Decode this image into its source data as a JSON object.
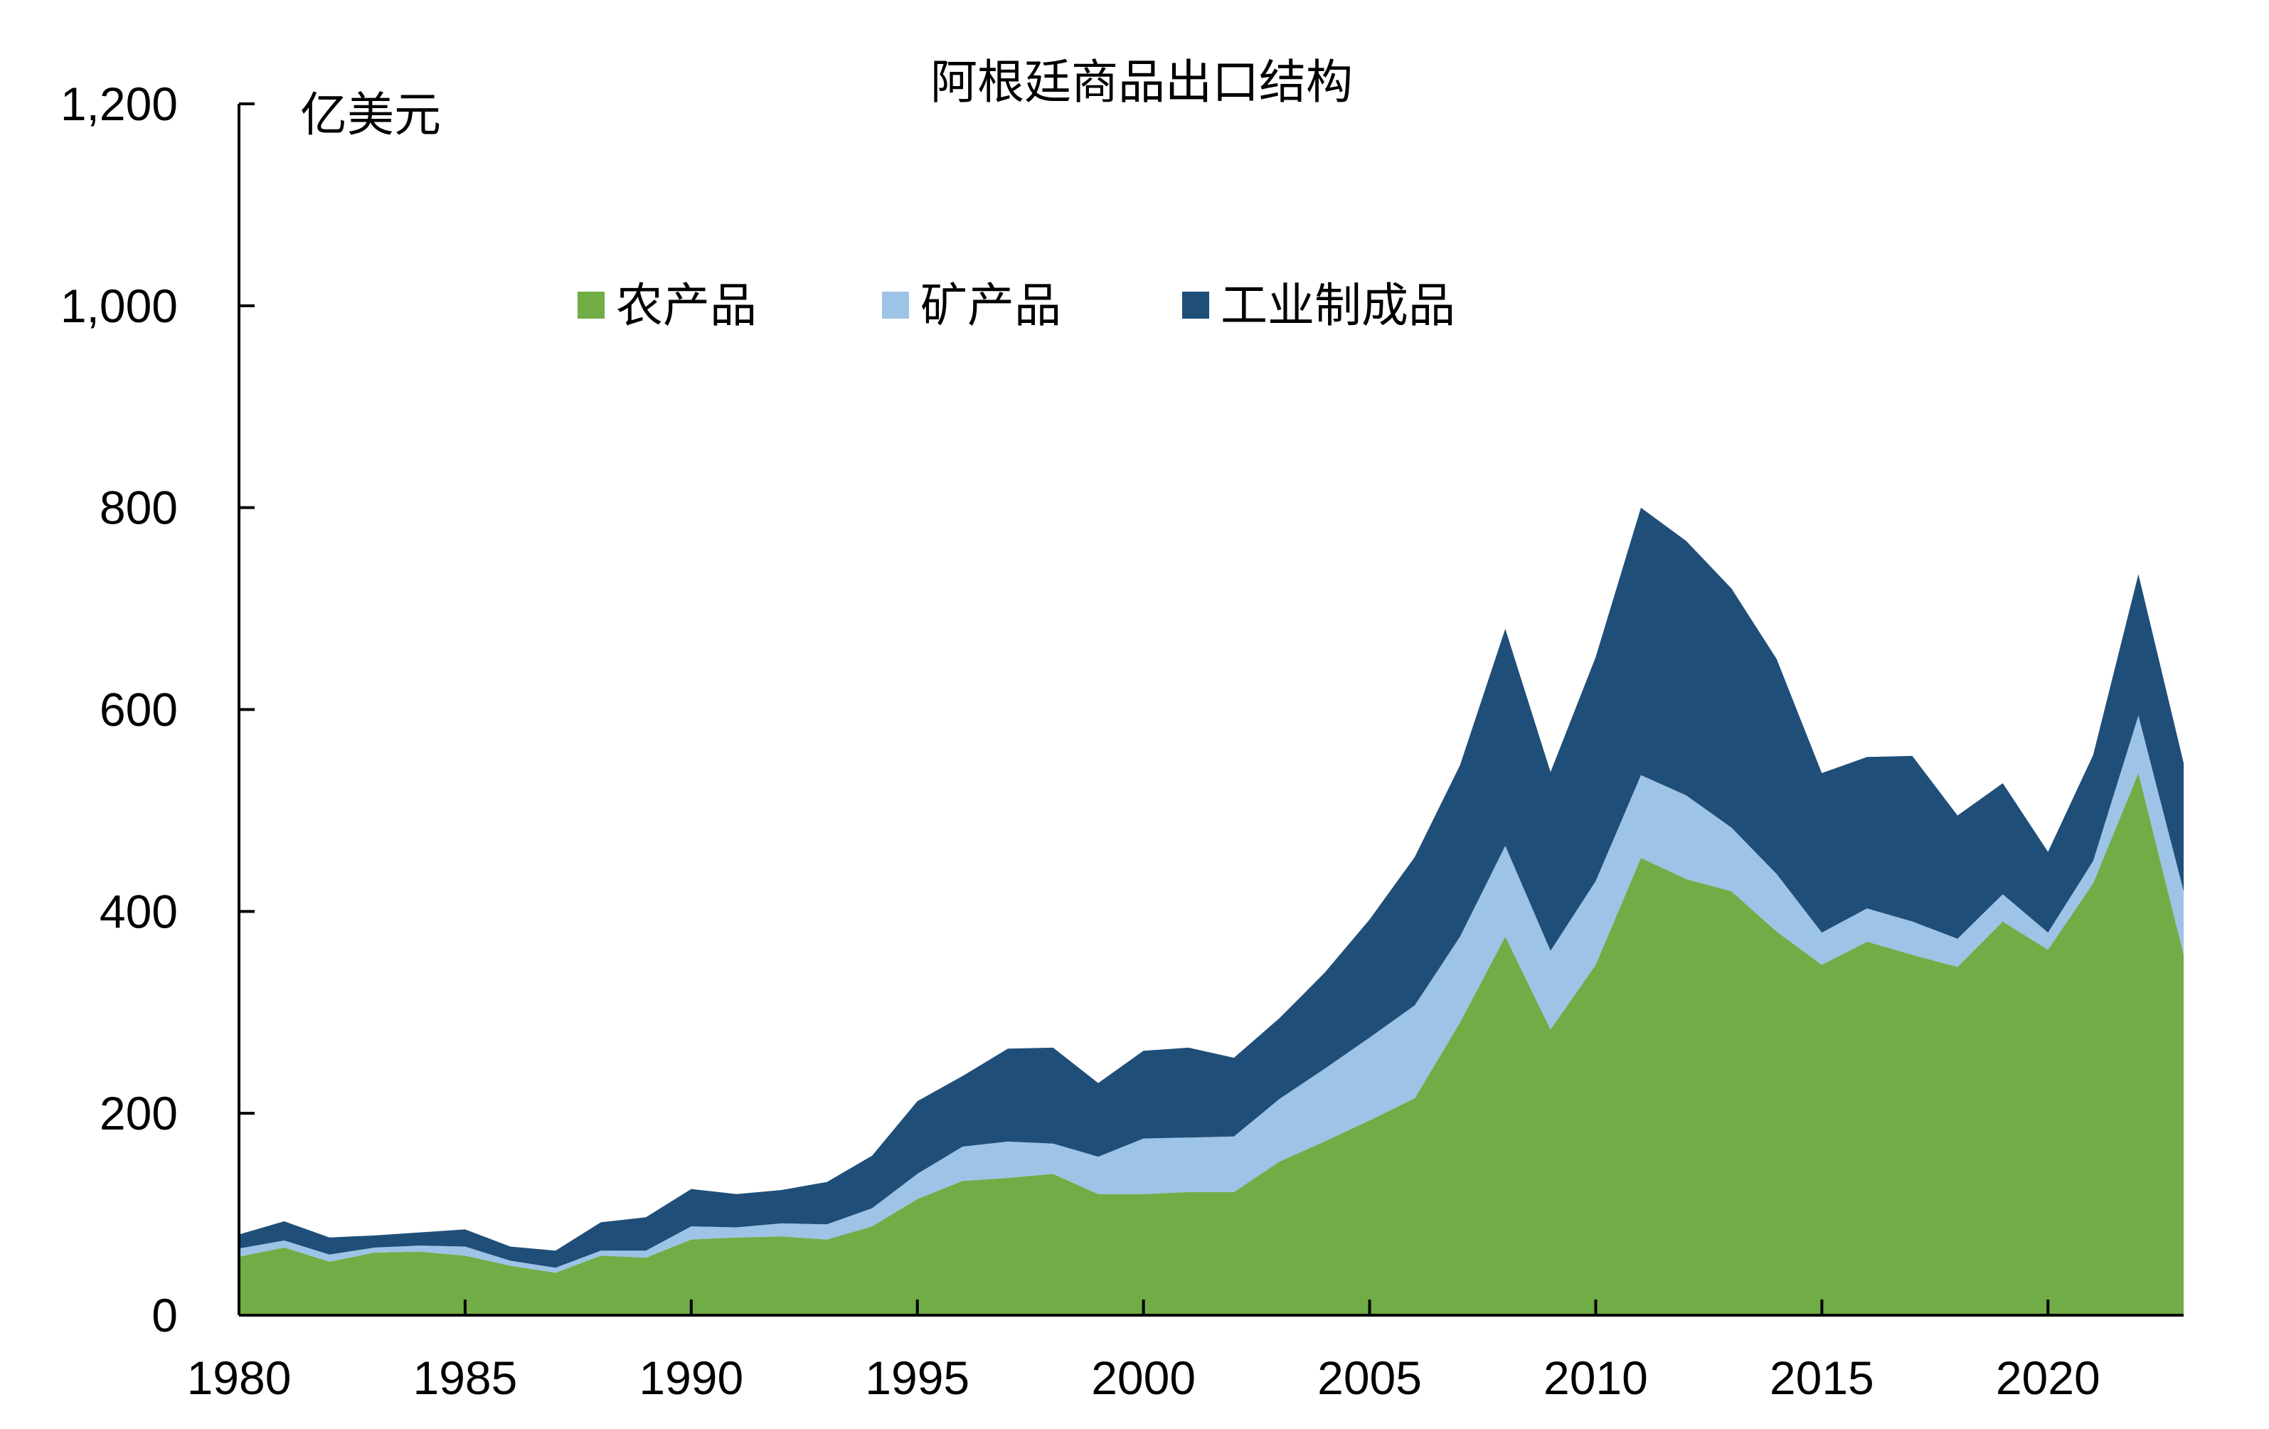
{
  "chart_data": {
    "type": "area",
    "stacked": true,
    "title": "阿根廷商品出口结构",
    "ylabel": "亿美元",
    "xlabel": "",
    "ylim": [
      0,
      1200
    ],
    "yticks": [
      0,
      200,
      400,
      600,
      800,
      1000,
      1200
    ],
    "ytick_labels": [
      "0",
      "200",
      "400",
      "600",
      "800",
      "1,000",
      "1,200"
    ],
    "xlim": [
      1980,
      2023
    ],
    "xticks": [
      1980,
      1985,
      1990,
      1995,
      2000,
      2005,
      2010,
      2015,
      2020
    ],
    "xtick_labels": [
      "1980",
      "1985",
      "1990",
      "1995",
      "2000",
      "2005",
      "2010",
      "2015",
      "2020"
    ],
    "grid": false,
    "legend_position": "top-center",
    "x": [
      1980,
      1981,
      1982,
      1983,
      1984,
      1985,
      1986,
      1987,
      1988,
      1989,
      1990,
      1991,
      1992,
      1993,
      1994,
      1995,
      1996,
      1997,
      1998,
      1999,
      2000,
      2001,
      2002,
      2003,
      2004,
      2005,
      2006,
      2007,
      2008,
      2009,
      2010,
      2011,
      2012,
      2013,
      2014,
      2015,
      2016,
      2017,
      2018,
      2019,
      2020,
      2021,
      2022,
      2023
    ],
    "series": [
      {
        "name": "农产品",
        "color": "#70AD47",
        "values": [
          58,
          67,
          53,
          62,
          63,
          59,
          49,
          42,
          59,
          57,
          75,
          77,
          78,
          75,
          88,
          115,
          133,
          136,
          140,
          120,
          120,
          122,
          122,
          152,
          172,
          193,
          215,
          290,
          375,
          283,
          347,
          453,
          432,
          420,
          380,
          347,
          370,
          357,
          345,
          390,
          362,
          428,
          537,
          357
        ]
      },
      {
        "name": "矿产品",
        "color": "#9DC3E6",
        "values": [
          8,
          7,
          7,
          5,
          6,
          9,
          5,
          5,
          5,
          7,
          13,
          10,
          13,
          15,
          18,
          25,
          34,
          36,
          30,
          37,
          55,
          54,
          55,
          62,
          72,
          82,
          92,
          85,
          90,
          78,
          83,
          82,
          83,
          63,
          57,
          32,
          33,
          33,
          28,
          27,
          17,
          22,
          57,
          63
        ]
      },
      {
        "name": "工业制成品",
        "color": "#1F4E79",
        "values": [
          14,
          19,
          17,
          12,
          13,
          17,
          14,
          17,
          28,
          33,
          37,
          33,
          33,
          42,
          52,
          72,
          70,
          92,
          95,
          73,
          87,
          89,
          78,
          80,
          95,
          117,
          147,
          170,
          215,
          177,
          222,
          265,
          252,
          237,
          213,
          158,
          150,
          164,
          122,
          110,
          80,
          105,
          140,
          127
        ]
      }
    ]
  }
}
